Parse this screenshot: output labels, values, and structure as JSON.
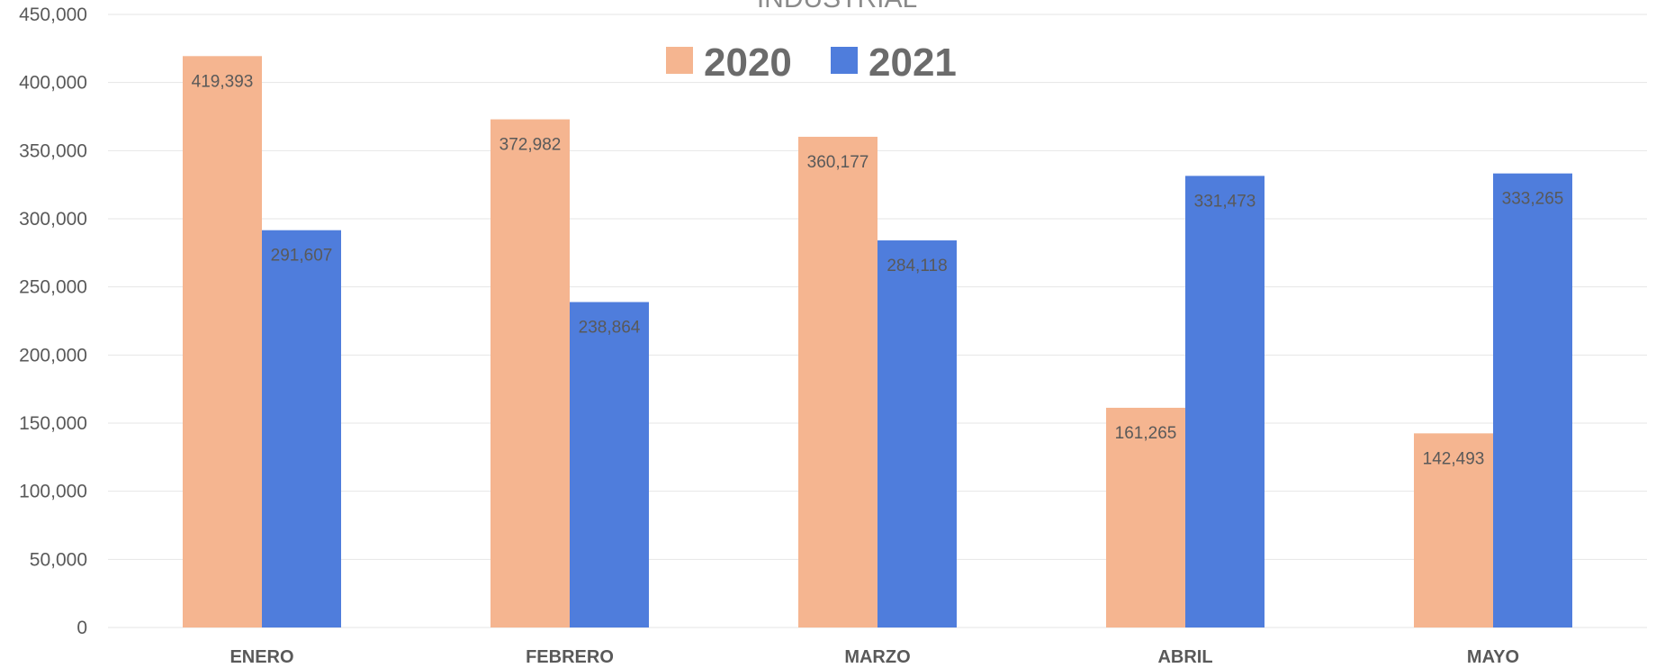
{
  "chart_data": {
    "type": "bar",
    "title": "INDUSTRIAL",
    "categories": [
      "ENERO",
      "FEBRERO",
      "MARZO",
      "ABRIL",
      "MAYO"
    ],
    "series": [
      {
        "name": "2020",
        "color": "#f5b590",
        "values": [
          419393,
          372982,
          360177,
          161265,
          142493
        ],
        "labels": [
          "419,393",
          "372,982",
          "360,177",
          "161,265",
          "142,493"
        ]
      },
      {
        "name": "2021",
        "color": "#4f7ddc",
        "values": [
          291607,
          238864,
          284118,
          331473,
          333265
        ],
        "labels": [
          "291,607",
          "238,864",
          "284,118",
          "331,473",
          "333,265"
        ]
      }
    ],
    "ylim": [
      0,
      450000
    ],
    "yticks": [
      0,
      50000,
      100000,
      150000,
      200000,
      250000,
      300000,
      350000,
      400000,
      450000
    ],
    "ytick_labels": [
      "0",
      "50,000",
      "100,000",
      "150,000",
      "200,000",
      "250,000",
      "300,000",
      "350,000",
      "400,000",
      "450,000"
    ],
    "grid": true,
    "legend": "top-center"
  }
}
